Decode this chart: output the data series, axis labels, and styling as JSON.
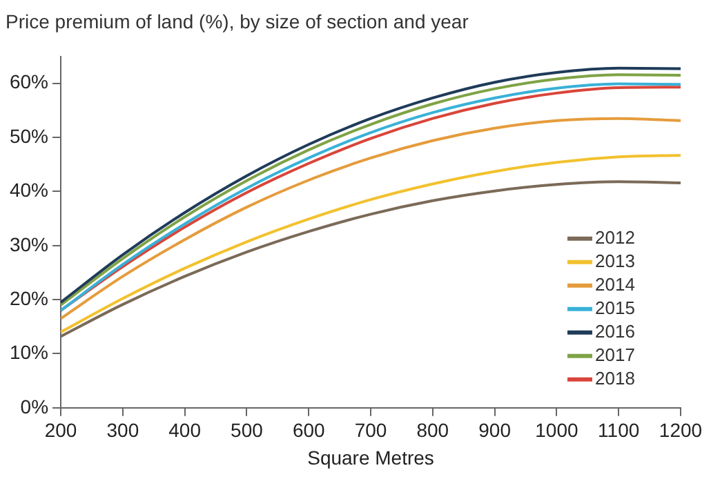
{
  "chart_data": {
    "type": "line",
    "title": "Price premium of land (%), by size of section and year",
    "xlabel": "Square Metres",
    "x": [
      200,
      300,
      400,
      500,
      600,
      700,
      800,
      900,
      1000,
      1100,
      1200
    ],
    "series": [
      {
        "name": "2012",
        "color": "#7b6a58",
        "values": [
          13.2,
          19.1,
          24.3,
          28.8,
          32.6,
          35.8,
          38.3,
          40.1,
          41.3,
          41.8,
          41.6
        ]
      },
      {
        "name": "2013",
        "color": "#f2c12e",
        "values": [
          14.0,
          20.2,
          25.8,
          30.7,
          34.9,
          38.5,
          41.4,
          43.7,
          45.4,
          46.4,
          46.7
        ]
      },
      {
        "name": "2014",
        "color": "#e59c3c",
        "values": [
          16.5,
          24.3,
          31.1,
          37.1,
          42.1,
          46.2,
          49.4,
          51.7,
          53.1,
          53.5,
          53.1
        ]
      },
      {
        "name": "2015",
        "color": "#39b1d8",
        "values": [
          18.0,
          26.5,
          34.0,
          40.6,
          46.2,
          50.9,
          54.6,
          57.3,
          59.1,
          59.9,
          59.8
        ]
      },
      {
        "name": "2016",
        "color": "#1f3b5a",
        "values": [
          19.5,
          28.3,
          36.1,
          42.9,
          48.7,
          53.5,
          57.3,
          60.2,
          62.0,
          62.8,
          62.7
        ]
      },
      {
        "name": "2017",
        "color": "#7fa345",
        "values": [
          19.0,
          27.6,
          35.3,
          42.0,
          47.7,
          52.4,
          56.2,
          59.0,
          60.8,
          61.6,
          61.5
        ]
      },
      {
        "name": "2018",
        "color": "#d9453a",
        "values": [
          18.0,
          26.1,
          33.4,
          39.8,
          45.2,
          49.8,
          53.5,
          56.3,
          58.2,
          59.2,
          59.3
        ]
      }
    ],
    "xlim": [
      200,
      1200
    ],
    "xticks": [
      200,
      300,
      400,
      500,
      600,
      700,
      800,
      900,
      1000,
      1100,
      1200
    ],
    "ylim": [
      0,
      65
    ],
    "yticks": [
      {
        "value": 0,
        "label": "0%"
      },
      {
        "value": 10,
        "label": "10%"
      },
      {
        "value": 20,
        "label": "20%"
      },
      {
        "value": 30,
        "label": "30%"
      },
      {
        "value": 40,
        "label": "40%"
      },
      {
        "value": 50,
        "label": "50%"
      },
      {
        "value": 60,
        "label": "60%"
      }
    ],
    "grid": false,
    "legend": "bottom right",
    "marker": "none",
    "line_style": "solid"
  }
}
